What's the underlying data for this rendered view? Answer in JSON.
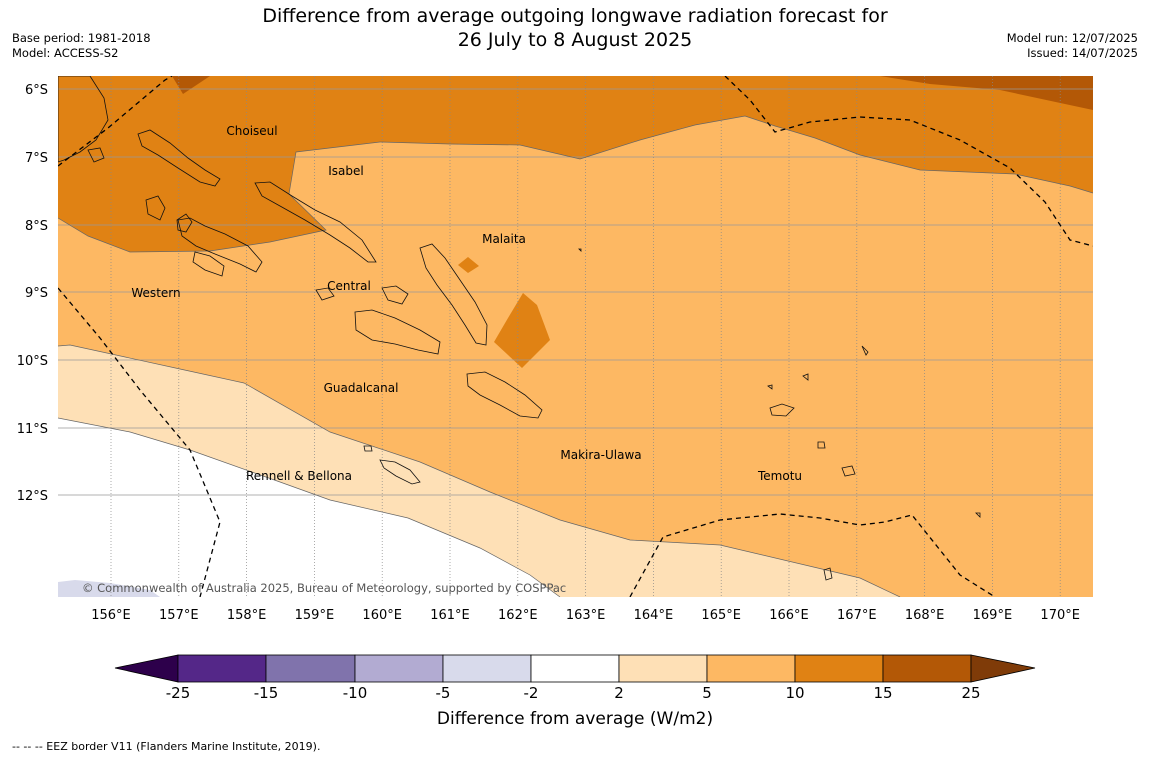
{
  "header": {
    "title_line1": "Difference from average outgoing longwave radiation forecast for",
    "title_line2": "26 July to 8 August 2025",
    "base_period": "Base period: 1981-2018",
    "model": "Model: ACCESS-S2",
    "model_run": "Model run: 12/07/2025",
    "issued": "Issued: 14/07/2025"
  },
  "map": {
    "lat_labels": [
      "6°S",
      "7°S",
      "8°S",
      "9°S",
      "10°S",
      "11°S",
      "12°S"
    ],
    "lon_labels": [
      "156°E",
      "157°E",
      "158°E",
      "159°E",
      "160°E",
      "161°E",
      "162°E",
      "163°E",
      "164°E",
      "165°E",
      "166°E",
      "167°E",
      "168°E",
      "169°E",
      "170°E"
    ],
    "region_labels": [
      "Choiseul",
      "Isabel",
      "Malaita",
      "Western",
      "Central",
      "Guadalcanal",
      "Makira-Ulawa",
      "Rennell & Bellona",
      "Temotu"
    ],
    "copyright": "© Commonwealth of Australia 2025, Bureau of Meteorology, supported by COSPPac",
    "field_colors": {
      "range_15_25": "#b35806",
      "range_10_15": "#e08214",
      "range_5_10": "#fdb863",
      "range_2_5": "#fee0b6",
      "range_m2_2": "#ffffff",
      "range_m5_m2": "#d8daeb"
    }
  },
  "colorbar": {
    "ticks": [
      "-25",
      "-15",
      "-10",
      "-5",
      "-2",
      "2",
      "5",
      "10",
      "15",
      "25"
    ],
    "colors": [
      "#2d004b",
      "#542788",
      "#8073ac",
      "#b2abd2",
      "#d8daeb",
      "#ffffff",
      "#fee0b6",
      "#fdb863",
      "#e08214",
      "#b35806",
      "#7f3b08"
    ],
    "title": "Difference from average (W/m2)"
  },
  "footer": {
    "eez_note": "--  --  -- EEZ border V11 (Flanders Marine Institute, 2019)."
  }
}
